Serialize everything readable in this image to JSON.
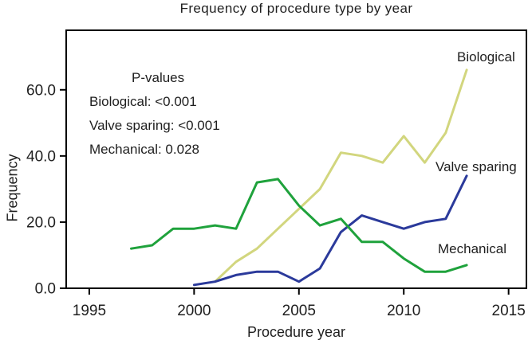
{
  "chart_data": {
    "type": "line",
    "title": "Frequency of procedure type by year",
    "xlabel": "Procedure year",
    "ylabel": "Frequency",
    "xlim": [
      1993.9,
      2015.85
    ],
    "ylim": [
      0,
      78
    ],
    "x_ticks": [
      1995,
      2000,
      2005,
      2010,
      2015
    ],
    "x_tick_labels": [
      "1995",
      "2000",
      "2005",
      "2010",
      "2015"
    ],
    "y_ticks": [
      0,
      20,
      40,
      60
    ],
    "y_tick_labels": [
      "0.0",
      "20.0",
      "40.0",
      "60.0"
    ],
    "grid": false,
    "legend_position": "inline-labels-at-line-ends",
    "background_color": "#ffffff",
    "axis_color": "#000000",
    "text_color": "#1f1f1f",
    "series": [
      {
        "name": "Biological",
        "color": "#d2d67e",
        "x": [
          2001,
          2002,
          2003,
          2004,
          2005,
          2006,
          2007,
          2008,
          2009,
          2010,
          2011,
          2012,
          2013
        ],
        "values": [
          2,
          8,
          12,
          18,
          24,
          30,
          41,
          40,
          38,
          46,
          38,
          47,
          66
        ]
      },
      {
        "name": "Valve sparing",
        "color": "#2b3a9b",
        "x": [
          2000,
          2001,
          2002,
          2003,
          2004,
          2005,
          2006,
          2007,
          2008,
          2009,
          2010,
          2011,
          2012,
          2013
        ],
        "values": [
          1,
          2,
          4,
          5,
          5,
          2,
          6,
          17,
          22,
          20,
          18,
          20,
          21,
          34
        ]
      },
      {
        "name": "Mechanical",
        "color": "#1fa23c",
        "x": [
          1997,
          1998,
          1999,
          2000,
          2001,
          2002,
          2003,
          2004,
          2005,
          2006,
          2007,
          2008,
          2009,
          2010,
          2011,
          2012,
          2013
        ],
        "values": [
          12,
          13,
          18,
          18,
          19,
          18,
          32,
          33,
          25,
          19,
          21,
          14,
          14,
          9,
          5,
          5,
          7
        ]
      }
    ]
  },
  "annotation": {
    "title": "P-values",
    "lines": [
      "Biological: <0.001",
      "Valve sparing: <0.001",
      "Mechanical: 0.028"
    ]
  }
}
